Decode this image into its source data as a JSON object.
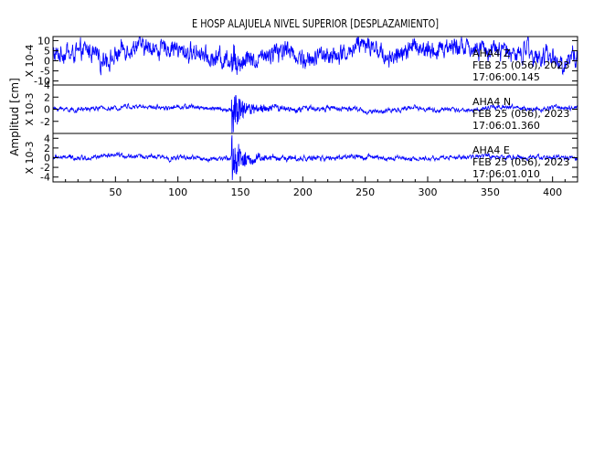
{
  "chart_data": {
    "type": "line",
    "title": "E HOSP ALAJUELA NIVEL SUPERIOR [DESPLAZAMIENTO]",
    "ylabel": "Amplitud [cm]",
    "xlim": [
      0,
      420
    ],
    "xticks": [
      50,
      100,
      150,
      200,
      250,
      300,
      350,
      400
    ],
    "line_color": "#0000ff",
    "panels": [
      {
        "channel": "AHA4  Z",
        "date": "FEB 25 (056), 2023",
        "time": "17:06:00.145",
        "scale": "X 10-4",
        "ylim": [
          -12,
          12
        ],
        "yticks": [
          -10,
          -5,
          0,
          5,
          10
        ],
        "ytick_labels": [
          "-10",
          "-5",
          "0",
          "5",
          "10"
        ],
        "baseline": 4,
        "noise": 3.6,
        "event_peak": 5,
        "tail_gain": 0.3
      },
      {
        "channel": "AHA4  N",
        "date": "FEB 25 (056), 2023",
        "time": "17:06:01.360",
        "scale": "X 10-3",
        "ylim": [
          -4,
          4
        ],
        "yticks": [
          -4,
          -2,
          0,
          2,
          4
        ],
        "ytick_labels": [
          "",
          "-2",
          "0",
          "2",
          "4"
        ],
        "baseline": 0,
        "noise": 0.28,
        "event_peak": 3.6,
        "tail_gain": 0.25
      },
      {
        "channel": "AHA4  E",
        "date": "FEB 25 (056), 2023",
        "time": "17:06:01.010",
        "scale": "X 10-3",
        "ylim": [
          -5,
          5
        ],
        "yticks": [
          -4,
          -2,
          0,
          2,
          4
        ],
        "ytick_labels": [
          "-4",
          "-2",
          "0",
          "2",
          "4"
        ],
        "baseline": 0,
        "noise": 0.35,
        "event_peak": 4.8,
        "tail_gain": 0.22
      }
    ],
    "event_x": 143
  }
}
